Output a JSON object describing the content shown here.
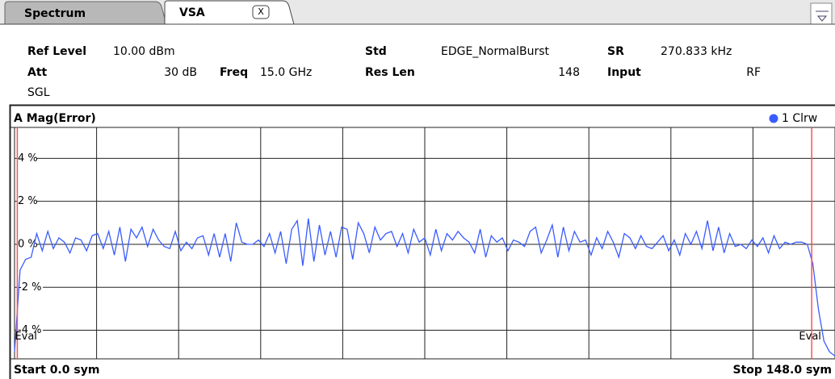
{
  "tabs": [
    {
      "label": "Spectrum"
    },
    {
      "label": "VSA",
      "close": "X"
    }
  ],
  "header": {
    "ref_level": {
      "label": "Ref Level",
      "value": "10.00 dBm"
    },
    "att": {
      "label": "Att",
      "value": "30 dB"
    },
    "freq": {
      "label": "Freq",
      "value": "15.0 GHz"
    },
    "mode": "SGL",
    "std": {
      "label": "Std",
      "value": "EDGE_NormalBurst"
    },
    "res_len": {
      "label": "Res Len",
      "value": "148"
    },
    "sr": {
      "label": "SR",
      "value": "270.833 kHz"
    },
    "input": {
      "label": "Input",
      "value": "RF"
    }
  },
  "chart_data": {
    "type": "line",
    "title": "A Mag(Error)",
    "x": [
      0,
      1,
      2,
      3,
      4,
      5,
      6,
      7,
      8,
      9,
      10,
      11,
      12,
      13,
      14,
      15,
      16,
      17,
      18,
      19,
      20,
      21,
      22,
      23,
      24,
      25,
      26,
      27,
      28,
      29,
      30,
      31,
      32,
      33,
      34,
      35,
      36,
      37,
      38,
      39,
      40,
      41,
      42,
      43,
      44,
      45,
      46,
      47,
      48,
      49,
      50,
      51,
      52,
      53,
      54,
      55,
      56,
      57,
      58,
      59,
      60,
      61,
      62,
      63,
      64,
      65,
      66,
      67,
      68,
      69,
      70,
      71,
      72,
      73,
      74,
      75,
      76,
      77,
      78,
      79,
      80,
      81,
      82,
      83,
      84,
      85,
      86,
      87,
      88,
      89,
      90,
      91,
      92,
      93,
      94,
      95,
      96,
      97,
      98,
      99,
      100,
      101,
      102,
      103,
      104,
      105,
      106,
      107,
      108,
      109,
      110,
      111,
      112,
      113,
      114,
      115,
      116,
      117,
      118,
      119,
      120,
      121,
      122,
      123,
      124,
      125,
      126,
      127,
      128,
      129,
      130,
      131,
      132,
      133,
      134,
      135,
      136,
      137,
      138,
      139,
      140,
      141,
      142,
      143,
      144,
      145,
      146,
      147,
      148
    ],
    "series": [
      {
        "name": "1 Clrw",
        "color": "#3a5cff",
        "values": [
          -5.0,
          -1.2,
          -0.7,
          -0.6,
          0.5,
          -0.3,
          0.6,
          -0.2,
          0.3,
          0.1,
          -0.4,
          0.3,
          0.2,
          -0.3,
          0.4,
          0.5,
          -0.2,
          0.6,
          -0.5,
          0.8,
          -0.8,
          0.7,
          0.3,
          0.8,
          -0.1,
          0.7,
          0.2,
          -0.1,
          -0.2,
          0.6,
          -0.3,
          0.1,
          -0.2,
          0.3,
          0.4,
          -0.5,
          0.5,
          -0.6,
          0.5,
          -0.8,
          1.0,
          0.1,
          0.0,
          0.0,
          0.2,
          -0.1,
          0.5,
          -0.4,
          0.6,
          -0.9,
          0.7,
          1.1,
          -1.0,
          1.2,
          -0.8,
          0.9,
          -0.5,
          0.6,
          -0.6,
          0.8,
          0.7,
          -0.7,
          1.0,
          0.5,
          -0.4,
          0.8,
          0.2,
          0.5,
          0.6,
          -0.1,
          0.5,
          -0.4,
          0.7,
          0.1,
          0.3,
          -0.5,
          0.7,
          -0.3,
          0.5,
          0.2,
          0.6,
          0.3,
          0.1,
          -0.4,
          0.7,
          -0.6,
          0.4,
          0.1,
          0.3,
          -0.3,
          0.2,
          0.1,
          -0.1,
          0.6,
          0.8,
          -0.4,
          0.2,
          0.9,
          -0.6,
          0.8,
          -0.3,
          0.6,
          0.1,
          0.2,
          -0.5,
          0.3,
          -0.2,
          0.6,
          0.1,
          -0.6,
          0.5,
          0.3,
          -0.2,
          0.4,
          -0.1,
          -0.2,
          0.1,
          0.4,
          -0.3,
          0.2,
          -0.5,
          0.5,
          0.0,
          0.6,
          -0.2,
          1.1,
          -0.3,
          0.8,
          -0.4,
          0.5,
          -0.1,
          0.0,
          -0.2,
          0.2,
          -0.1,
          0.3,
          -0.4,
          0.4,
          -0.2,
          0.1,
          0.0,
          0.1,
          0.1,
          0.0,
          -0.9,
          -3.0,
          -4.5,
          -5.0,
          -5.2
        ]
      }
    ],
    "xlim": [
      0,
      148
    ],
    "ylim": [
      -5.33,
      5.44
    ],
    "xticks": [
      0,
      14.8,
      29.6,
      44.4,
      59.2,
      74,
      88.8,
      103.6,
      118.4,
      133.2,
      148
    ],
    "yticks": [
      {
        "value": 4,
        "label": "4 %"
      },
      {
        "value": 2,
        "label": "2 %"
      },
      {
        "value": 0,
        "label": "0 %"
      },
      {
        "value": -2,
        "label": "-2 %"
      },
      {
        "value": -4,
        "label": "-4 %"
      }
    ],
    "grid": true,
    "eval_lines": {
      "label": "Eval",
      "color": "#ff5050",
      "values": [
        0.5,
        143.8
      ]
    },
    "start_label": "Start 0.0 sym",
    "stop_label": "Stop 148.0 sym"
  }
}
